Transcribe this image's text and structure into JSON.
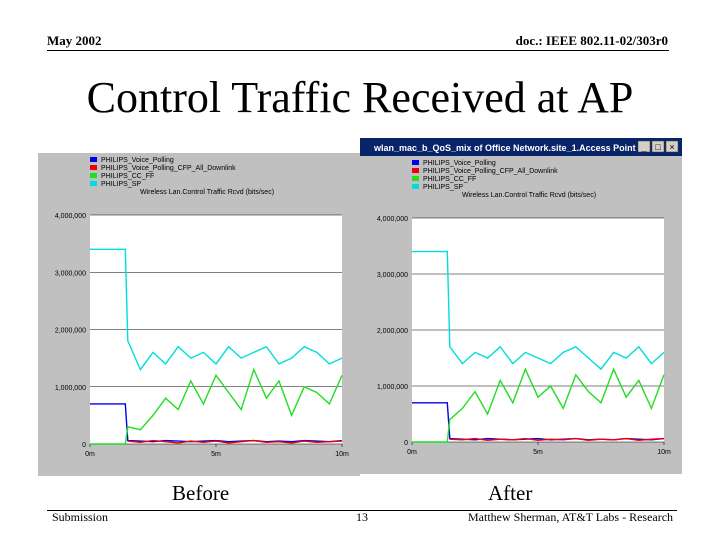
{
  "header": {
    "date": "May 2002",
    "doc": "doc.: IEEE 802.11-02/303r0"
  },
  "title": "Control Traffic Received at AP",
  "captions": {
    "before": "Before",
    "after": "After"
  },
  "footer": {
    "left": "Submission",
    "page": "13",
    "right": "Matthew Sherman, AT&T Labs - Research"
  },
  "window_after": {
    "title": "wlan_mac_b_QoS_mix of Office Network.site_1.Access Point",
    "buttons": [
      "_",
      "□",
      "×"
    ]
  },
  "colors": {
    "blue": "#0000ee",
    "red": "#ee0000",
    "green": "#22dd22",
    "cyan": "#00dddd",
    "panel_bg": "#c0c0c0",
    "plot_bg": "#ffffff",
    "titlebar": "#0a246a"
  },
  "chart_data": [
    {
      "type": "line",
      "label": "Before",
      "title": "Wireless Lan.Control Traffic Rcvd (bits/sec)",
      "xlim": [
        0,
        10
      ],
      "ylim": [
        0,
        4000000
      ],
      "yticks": [
        0,
        1000000,
        2000000,
        3000000,
        4000000
      ],
      "ytick_labels": [
        "0",
        "1,000,000",
        "2,000,000",
        "3,000,000",
        "4,000,000"
      ],
      "xticks": [
        0,
        5,
        10
      ],
      "xtick_labels": [
        "0m",
        "5m",
        "10m"
      ],
      "grid": true,
      "legend_position": "top",
      "x": [
        0,
        0.5,
        1,
        1.5,
        2,
        2.5,
        3,
        3.5,
        4,
        4.5,
        5,
        5.5,
        6,
        6.5,
        7,
        7.5,
        8,
        8.5,
        9,
        9.5,
        10
      ],
      "series": [
        {
          "name": "PHILIPS_Voice_Polling",
          "color": "#0000ee",
          "x": [
            0,
            1.4,
            1.5,
            2,
            2.5,
            3,
            3.5,
            4,
            4.5,
            5,
            5.5,
            6,
            6.5,
            7,
            7.5,
            8,
            8.5,
            9,
            9.5,
            10
          ],
          "values": [
            700000,
            700000,
            60000,
            50000,
            40000,
            60000,
            50000,
            40000,
            50000,
            60000,
            40000,
            50000,
            60000,
            40000,
            50000,
            40000,
            60000,
            50000,
            40000,
            60000
          ]
        },
        {
          "name": "PHILIPS_Voice_Polling_CFP_All_Downlink",
          "color": "#ee0000",
          "x": [
            1.5,
            2,
            2.5,
            3,
            3.5,
            4,
            4.5,
            5,
            5.5,
            6,
            6.5,
            7,
            7.5,
            8,
            8.5,
            9,
            9.5,
            10
          ],
          "values": [
            50000,
            30000,
            60000,
            40000,
            20000,
            50000,
            30000,
            50000,
            20000,
            40000,
            60000,
            30000,
            40000,
            20000,
            50000,
            30000,
            40000,
            50000
          ]
        },
        {
          "name": "PHILIPS_CC_FF",
          "color": "#22dd22",
          "x": [
            0,
            1.4,
            1.5,
            2,
            2.5,
            3,
            3.5,
            4,
            4.5,
            5,
            5.5,
            6,
            6.5,
            7,
            7.5,
            8,
            8.5,
            9,
            9.5,
            10
          ],
          "values": [
            0,
            0,
            300000,
            250000,
            500000,
            800000,
            600000,
            1100000,
            700000,
            1200000,
            900000,
            600000,
            1300000,
            800000,
            1100000,
            500000,
            1000000,
            900000,
            700000,
            1200000
          ]
        },
        {
          "name": "PHILIPS_SP",
          "color": "#00dddd",
          "x": [
            0,
            1.4,
            1.5,
            2,
            2.5,
            3,
            3.5,
            4,
            4.5,
            5,
            5.5,
            6,
            6.5,
            7,
            7.5,
            8,
            8.5,
            9,
            9.5,
            10
          ],
          "values": [
            3400000,
            3400000,
            1800000,
            1300000,
            1600000,
            1400000,
            1700000,
            1500000,
            1600000,
            1400000,
            1700000,
            1500000,
            1600000,
            1700000,
            1400000,
            1500000,
            1700000,
            1600000,
            1400000,
            1500000
          ]
        }
      ]
    },
    {
      "type": "line",
      "label": "After",
      "title": "Wireless Lan.Control Traffic Rcvd (bits/sec)",
      "xlim": [
        0,
        10
      ],
      "ylim": [
        0,
        4000000
      ],
      "yticks": [
        0,
        1000000,
        2000000,
        3000000,
        4000000
      ],
      "ytick_labels": [
        "0",
        "1,000,000",
        "2,000,000",
        "3,000,000",
        "4,000,000"
      ],
      "xticks": [
        0,
        5,
        10
      ],
      "xtick_labels": [
        "0m",
        "5m",
        "10m"
      ],
      "grid": true,
      "legend_position": "top",
      "series": [
        {
          "name": "PHILIPS_Voice_Polling",
          "color": "#0000ee",
          "x": [
            0,
            1.4,
            1.5,
            2,
            2.5,
            3,
            3.5,
            4,
            4.5,
            5,
            5.5,
            6,
            6.5,
            7,
            7.5,
            8,
            8.5,
            9,
            9.5,
            10
          ],
          "values": [
            700000,
            700000,
            60000,
            50000,
            40000,
            60000,
            50000,
            40000,
            50000,
            60000,
            40000,
            50000,
            60000,
            40000,
            50000,
            40000,
            60000,
            50000,
            40000,
            60000
          ]
        },
        {
          "name": "PHILIPS_Voice_Polling_CFP_All_Downlink",
          "color": "#ee0000",
          "x": [
            1.5,
            2,
            2.5,
            3,
            3.5,
            4,
            4.5,
            5,
            5.5,
            6,
            6.5,
            7,
            7.5,
            8,
            8.5,
            9,
            9.5,
            10
          ],
          "values": [
            50000,
            40000,
            60000,
            30000,
            50000,
            40000,
            60000,
            30000,
            50000,
            40000,
            60000,
            30000,
            50000,
            40000,
            60000,
            30000,
            50000,
            60000
          ]
        },
        {
          "name": "PHILIPS_CC_FF",
          "color": "#22dd22",
          "x": [
            0,
            1.4,
            1.5,
            2,
            2.5,
            3,
            3.5,
            4,
            4.5,
            5,
            5.5,
            6,
            6.5,
            7,
            7.5,
            8,
            8.5,
            9,
            9.5,
            10
          ],
          "values": [
            0,
            0,
            400000,
            600000,
            900000,
            500000,
            1100000,
            700000,
            1300000,
            800000,
            1000000,
            600000,
            1200000,
            900000,
            700000,
            1300000,
            800000,
            1100000,
            600000,
            1200000
          ]
        },
        {
          "name": "PHILIPS_SP",
          "color": "#00dddd",
          "x": [
            0,
            1.4,
            1.5,
            2,
            2.5,
            3,
            3.5,
            4,
            4.5,
            5,
            5.5,
            6,
            6.5,
            7,
            7.5,
            8,
            8.5,
            9,
            9.5,
            10
          ],
          "values": [
            3400000,
            3400000,
            1700000,
            1400000,
            1600000,
            1500000,
            1700000,
            1400000,
            1600000,
            1500000,
            1400000,
            1600000,
            1700000,
            1500000,
            1300000,
            1600000,
            1500000,
            1700000,
            1400000,
            1600000
          ]
        }
      ]
    }
  ]
}
